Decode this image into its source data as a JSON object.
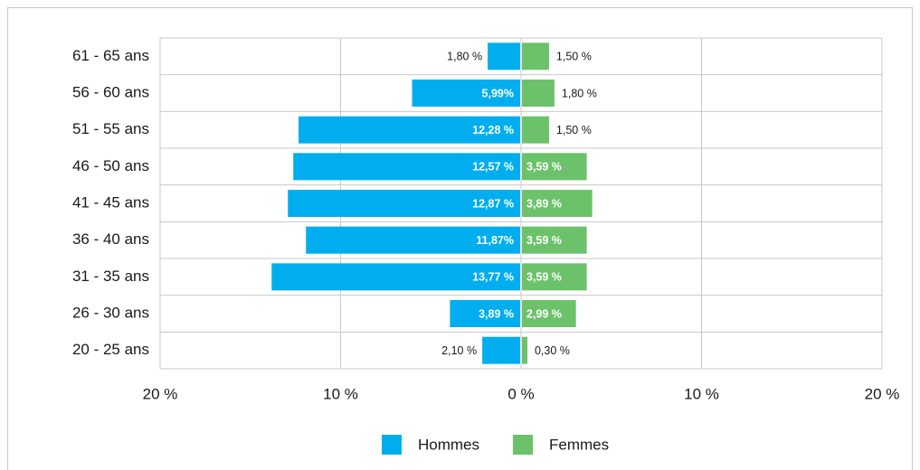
{
  "chart_data": {
    "type": "pyramid",
    "categories": [
      "61 - 65 ans",
      "56 - 60 ans",
      "51 - 55 ans",
      "46 - 50 ans",
      "41 - 45 ans",
      "36 - 40 ans",
      "31 - 35 ans",
      "26 - 30 ans",
      "20 - 25 ans"
    ],
    "series": [
      {
        "name": "Hommes",
        "color": "#00aeef",
        "side": "left",
        "values": [
          1.8,
          5.99,
          12.28,
          12.57,
          12.87,
          11.87,
          13.77,
          3.89,
          2.1
        ],
        "value_labels": [
          "1,80 %",
          "5,99%",
          "12,28 %",
          "12,57 %",
          "12,87 %",
          "11,87%",
          "13,77 %",
          "3,89 %",
          "2,10 %"
        ]
      },
      {
        "name": "Femmes",
        "color": "#6cc26a",
        "side": "right",
        "values": [
          1.5,
          1.8,
          1.5,
          3.59,
          3.89,
          3.59,
          3.59,
          2.99,
          0.3
        ],
        "value_labels": [
          "1,50 %",
          "1,80 %",
          "1,50 %",
          "3,59 %",
          "3,89 %",
          "3,59 %",
          "3,59 %",
          "2,99 %",
          "0,30 %"
        ]
      }
    ],
    "xlim": [
      -20,
      20
    ],
    "xticks": [
      {
        "value": -20,
        "label": "20 %"
      },
      {
        "value": -10,
        "label": "10 %"
      },
      {
        "value": 0,
        "label": "0 %"
      },
      {
        "value": 10,
        "label": "10 %"
      },
      {
        "value": 20,
        "label": "20 %"
      }
    ],
    "grid": true,
    "legend": "bottom"
  }
}
